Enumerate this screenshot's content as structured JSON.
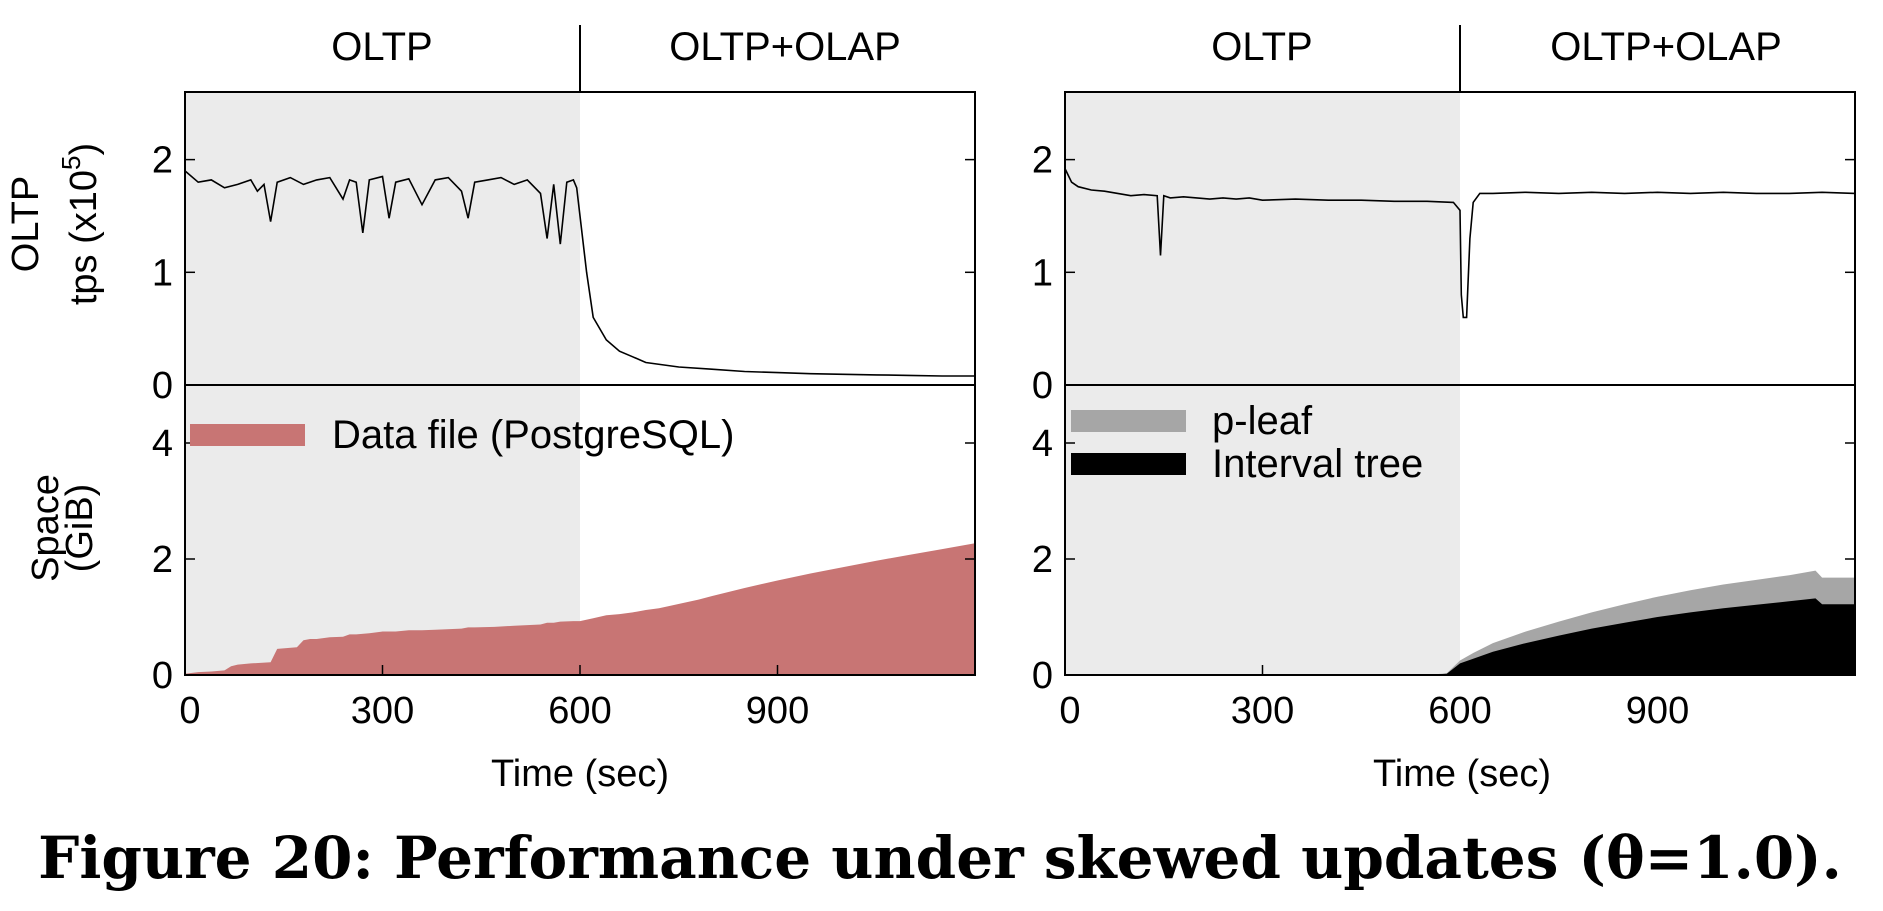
{
  "caption": "Figure 20: Performance under skewed updates (θ=1.0).",
  "colors": {
    "shade": "#ebebeb",
    "data_file": "#c87574",
    "p_leaf": "#a6a6a6",
    "interval_tree": "#000000",
    "line": "#000000"
  },
  "phases": [
    "OLTP",
    "OLTP+OLAP"
  ],
  "ylabels": {
    "tps_line1": "OLTP",
    "tps_line2": "tps (x10",
    "tps_exp": "5",
    "tps_close": ")",
    "space_line1": "Space",
    "space_line2": "(GiB)"
  },
  "chart_data": [
    {
      "type": "line",
      "panel": "left-top",
      "ylabel": "OLTP tps (x10^5)",
      "xlim": [
        0,
        1200
      ],
      "ylim": [
        0,
        2.6
      ],
      "yticks": [
        "0",
        "1",
        "2"
      ],
      "shaded_region": [
        0,
        600
      ],
      "x": [
        0,
        20,
        40,
        60,
        80,
        100,
        110,
        120,
        130,
        140,
        160,
        180,
        200,
        220,
        240,
        250,
        260,
        270,
        280,
        300,
        310,
        320,
        340,
        360,
        380,
        400,
        420,
        430,
        440,
        460,
        480,
        500,
        520,
        540,
        550,
        560,
        570,
        580,
        590,
        595,
        600,
        610,
        620,
        640,
        660,
        680,
        700,
        750,
        800,
        850,
        900,
        950,
        1000,
        1050,
        1100,
        1150,
        1200
      ],
      "series": [
        {
          "values": [
            1.9,
            1.8,
            1.82,
            1.75,
            1.78,
            1.82,
            1.72,
            1.78,
            1.45,
            1.8,
            1.84,
            1.78,
            1.82,
            1.84,
            1.65,
            1.82,
            1.8,
            1.35,
            1.82,
            1.85,
            1.48,
            1.8,
            1.83,
            1.6,
            1.82,
            1.84,
            1.72,
            1.48,
            1.8,
            1.82,
            1.84,
            1.78,
            1.82,
            1.7,
            1.3,
            1.78,
            1.25,
            1.8,
            1.82,
            1.75,
            1.5,
            1.0,
            0.6,
            0.4,
            0.3,
            0.25,
            0.2,
            0.16,
            0.14,
            0.12,
            0.11,
            0.1,
            0.095,
            0.09,
            0.085,
            0.08,
            0.08
          ]
        }
      ]
    },
    {
      "type": "area",
      "panel": "left-bottom",
      "ylabel": "Space (GiB)",
      "xlabel": "Time (sec)",
      "xlim": [
        0,
        1200
      ],
      "ylim": [
        0,
        5
      ],
      "yticks": [
        "0",
        "2",
        "4"
      ],
      "xticks": [
        "0",
        "300",
        "600",
        "900"
      ],
      "x": [
        0,
        20,
        40,
        60,
        70,
        80,
        100,
        130,
        140,
        170,
        180,
        190,
        200,
        220,
        240,
        250,
        260,
        280,
        300,
        320,
        340,
        360,
        380,
        420,
        430,
        440,
        470,
        500,
        540,
        550,
        560,
        570,
        590,
        600,
        620,
        640,
        660,
        680,
        700,
        720,
        740,
        760,
        780,
        800,
        850,
        900,
        950,
        1000,
        1050,
        1100,
        1150,
        1200
      ],
      "series": [
        {
          "name": "Data file (PostgreSQL)",
          "values": [
            0.02,
            0.05,
            0.06,
            0.08,
            0.15,
            0.18,
            0.2,
            0.22,
            0.45,
            0.48,
            0.6,
            0.62,
            0.62,
            0.65,
            0.66,
            0.7,
            0.7,
            0.72,
            0.75,
            0.75,
            0.77,
            0.77,
            0.78,
            0.8,
            0.82,
            0.82,
            0.83,
            0.85,
            0.87,
            0.9,
            0.9,
            0.92,
            0.93,
            0.93,
            0.98,
            1.03,
            1.05,
            1.08,
            1.12,
            1.15,
            1.2,
            1.25,
            1.3,
            1.36,
            1.5,
            1.63,
            1.75,
            1.86,
            1.97,
            2.07,
            2.17,
            2.27
          ]
        }
      ]
    },
    {
      "type": "line",
      "panel": "right-top",
      "ylabel": "OLTP tps (x10^5)",
      "xlim": [
        0,
        1200
      ],
      "ylim": [
        0,
        2.6
      ],
      "yticks": [
        "0",
        "1",
        "2"
      ],
      "shaded_region": [
        0,
        600
      ],
      "x": [
        0,
        10,
        20,
        40,
        60,
        80,
        100,
        120,
        140,
        145,
        150,
        160,
        180,
        200,
        220,
        240,
        260,
        280,
        300,
        350,
        400,
        450,
        500,
        550,
        590,
        600,
        602,
        605,
        610,
        615,
        620,
        630,
        650,
        700,
        750,
        800,
        850,
        900,
        950,
        1000,
        1050,
        1100,
        1150,
        1200
      ],
      "series": [
        {
          "values": [
            1.92,
            1.8,
            1.76,
            1.73,
            1.72,
            1.7,
            1.68,
            1.69,
            1.68,
            1.15,
            1.68,
            1.66,
            1.67,
            1.66,
            1.65,
            1.66,
            1.65,
            1.66,
            1.64,
            1.65,
            1.64,
            1.64,
            1.63,
            1.63,
            1.62,
            1.55,
            0.8,
            0.6,
            0.6,
            1.3,
            1.62,
            1.7,
            1.7,
            1.71,
            1.7,
            1.71,
            1.7,
            1.71,
            1.7,
            1.71,
            1.7,
            1.7,
            1.71,
            1.7
          ]
        }
      ]
    },
    {
      "type": "area",
      "panel": "right-bottom",
      "ylabel": "Space (GiB)",
      "xlabel": "Time (sec)",
      "xlim": [
        0,
        1200
      ],
      "ylim": [
        0,
        5
      ],
      "yticks": [
        "0",
        "2",
        "4"
      ],
      "xticks": [
        "0",
        "300",
        "600",
        "900"
      ],
      "x": [
        0,
        550,
        580,
        600,
        620,
        650,
        700,
        750,
        800,
        850,
        900,
        950,
        1000,
        1050,
        1100,
        1140,
        1150,
        1160,
        1200
      ],
      "stacked": true,
      "series": [
        {
          "name": "p-leaf",
          "values": [
            0,
            0,
            0.03,
            0.25,
            0.38,
            0.55,
            0.75,
            0.92,
            1.08,
            1.22,
            1.35,
            1.46,
            1.56,
            1.64,
            1.72,
            1.8,
            1.68,
            1.68,
            1.68
          ]
        },
        {
          "name": "Interval tree",
          "values": [
            0,
            0,
            0.02,
            0.2,
            0.28,
            0.4,
            0.55,
            0.68,
            0.8,
            0.9,
            1.0,
            1.08,
            1.15,
            1.21,
            1.27,
            1.32,
            1.22,
            1.22,
            1.22
          ]
        }
      ]
    }
  ]
}
